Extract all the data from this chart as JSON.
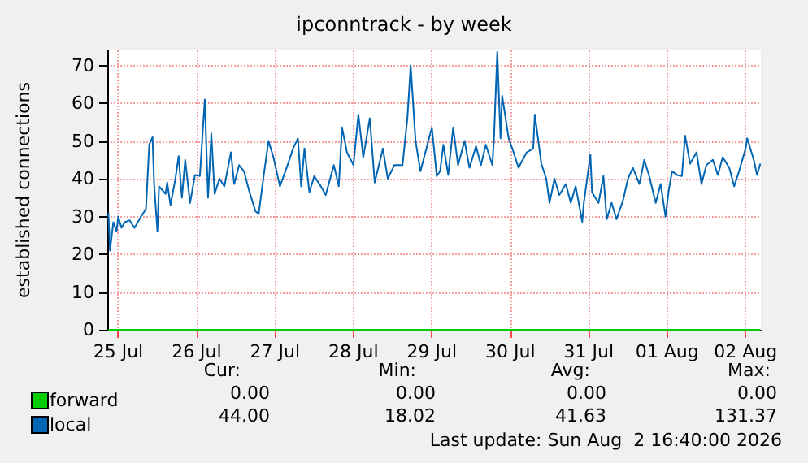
{
  "chart_data": {
    "type": "line",
    "title": "ipconntrack - by week",
    "ylabel": "established connections",
    "xlim": [
      "2026-07-25T08:40",
      "2026-08-02T16:40"
    ],
    "xticks": [
      {
        "value": "2026-07-25T12:00",
        "label": "25 Jul"
      },
      {
        "value": "2026-07-26T12:00",
        "label": "26 Jul"
      },
      {
        "value": "2026-07-27T12:00",
        "label": "27 Jul"
      },
      {
        "value": "2026-07-28T12:00",
        "label": "28 Jul"
      },
      {
        "value": "2026-07-29T12:00",
        "label": "29 Jul"
      },
      {
        "value": "2026-07-30T12:00",
        "label": "30 Jul"
      },
      {
        "value": "2026-07-31T12:00",
        "label": "31 Jul"
      },
      {
        "value": "2026-08-01T12:00",
        "label": "01 Aug"
      },
      {
        "value": "2026-08-02T12:00",
        "label": "02 Aug"
      }
    ],
    "ylim": [
      0,
      74
    ],
    "yticks": [
      0,
      10,
      20,
      30,
      40,
      50,
      60,
      70
    ],
    "grid": true,
    "legend": "bottom left",
    "marker": "none",
    "line_style": "solid",
    "x": [
      "2026-07-25T09:00",
      "2026-07-25T09:30",
      "2026-07-25T10:30",
      "2026-07-25T11:30",
      "2026-07-25T12:00",
      "2026-07-25T13:00",
      "2026-07-25T14:00",
      "2026-07-25T15:30",
      "2026-07-25T17:00",
      "2026-07-25T19:00",
      "2026-07-25T20:30",
      "2026-07-25T21:30",
      "2026-07-25T22:30",
      "2026-07-25T23:00",
      "2026-07-26T00:00",
      "2026-07-26T00:30",
      "2026-07-26T02:30",
      "2026-07-26T03:00",
      "2026-07-26T04:00",
      "2026-07-26T05:30",
      "2026-07-26T06:30",
      "2026-07-26T07:30",
      "2026-07-26T08:30",
      "2026-07-26T10:00",
      "2026-07-26T11:30",
      "2026-07-26T13:00",
      "2026-07-26T14:30",
      "2026-07-26T15:30",
      "2026-07-26T16:30",
      "2026-07-26T17:30",
      "2026-07-26T19:00",
      "2026-07-26T20:30",
      "2026-07-26T22:30",
      "2026-07-26T23:30",
      "2026-07-27T01:00",
      "2026-07-27T02:30",
      "2026-07-27T04:00",
      "2026-07-27T06:00",
      "2026-07-27T07:00",
      "2026-07-27T08:30",
      "2026-07-27T10:00",
      "2026-07-27T11:30",
      "2026-07-27T13:30",
      "2026-07-27T16:00",
      "2026-07-27T17:30",
      "2026-07-27T19:00",
      "2026-07-27T20:00",
      "2026-07-27T21:00",
      "2026-07-27T22:30",
      "2026-07-28T00:00",
      "2026-07-28T02:00",
      "2026-07-28T03:30",
      "2026-07-28T06:00",
      "2026-07-28T07:30",
      "2026-07-28T08:30",
      "2026-07-28T10:00",
      "2026-07-28T12:00",
      "2026-07-28T13:30",
      "2026-07-28T15:00",
      "2026-07-28T17:00",
      "2026-07-28T18:30",
      "2026-07-28T21:00",
      "2026-07-28T22:30",
      "2026-07-29T00:30",
      "2026-07-29T03:00",
      "2026-07-29T04:30",
      "2026-07-29T05:30",
      "2026-07-29T07:00",
      "2026-07-29T08:30",
      "2026-07-29T10:30",
      "2026-07-29T12:00",
      "2026-07-29T13:30",
      "2026-07-29T14:30",
      "2026-07-29T15:30",
      "2026-07-29T17:00",
      "2026-07-29T18:30",
      "2026-07-29T20:00",
      "2026-07-29T22:00",
      "2026-07-29T23:30",
      "2026-07-30T01:30",
      "2026-07-30T03:00",
      "2026-07-30T04:30",
      "2026-07-30T06:30",
      "2026-07-30T07:00",
      "2026-07-30T08:00",
      "2026-07-30T09:00",
      "2026-07-30T09:30",
      "2026-07-30T11:30",
      "2026-07-30T13:00",
      "2026-07-30T14:30",
      "2026-07-30T17:00",
      "2026-07-30T19:00",
      "2026-07-30T19:30",
      "2026-07-30T21:30",
      "2026-07-30T23:00",
      "2026-07-31T00:00",
      "2026-07-31T01:30",
      "2026-07-31T03:00",
      "2026-07-31T05:00",
      "2026-07-31T06:30",
      "2026-07-31T08:00",
      "2026-07-31T10:00",
      "2026-07-31T10:30",
      "2026-07-31T12:30",
      "2026-07-31T13:00",
      "2026-07-31T15:00",
      "2026-07-31T16:30",
      "2026-07-31T17:30",
      "2026-07-31T19:00",
      "2026-07-31T20:30",
      "2026-07-31T22:30",
      "2026-08-01T00:00",
      "2026-08-01T01:30",
      "2026-08-01T03:30",
      "2026-08-01T05:00",
      "2026-08-01T06:30",
      "2026-08-01T08:30",
      "2026-08-01T10:00",
      "2026-08-01T11:30",
      "2026-08-01T12:30",
      "2026-08-01T13:30",
      "2026-08-01T15:00",
      "2026-08-01T16:30",
      "2026-08-01T17:30",
      "2026-08-01T19:00",
      "2026-08-01T21:00",
      "2026-08-01T22:30",
      "2026-08-02T00:00",
      "2026-08-02T02:00",
      "2026-08-02T03:30",
      "2026-08-02T05:00",
      "2026-08-02T07:00",
      "2026-08-02T08:30",
      "2026-08-02T10:00",
      "2026-08-02T12:00",
      "2026-08-02T12:30",
      "2026-08-02T14:30",
      "2026-08-02T15:30",
      "2026-08-02T16:30"
    ],
    "series": [
      {
        "name": "forward",
        "color": "#00cc00",
        "x": [
          "2026-07-25T09:00",
          "2026-08-02T16:30"
        ],
        "values": [
          0,
          0
        ]
      },
      {
        "name": "local",
        "color": "#0066b3",
        "values": [
          31,
          21,
          28.5,
          26,
          30,
          27,
          28.5,
          29,
          27,
          30,
          32,
          49,
          51,
          38.5,
          26,
          38,
          36,
          39,
          33,
          40,
          46,
          35,
          45,
          33.6,
          41,
          40.7,
          61,
          35,
          52,
          36,
          40,
          38,
          47,
          38.6,
          43.6,
          42,
          37,
          31.4,
          30.7,
          40.7,
          50,
          45.7,
          38,
          44,
          48,
          50.7,
          38,
          48,
          36.4,
          40.7,
          38,
          35.7,
          43.6,
          38,
          53.6,
          47,
          43.6,
          57,
          45.7,
          56,
          39,
          48,
          40,
          43.6,
          43.6,
          56,
          70,
          50,
          42,
          48.6,
          53.6,
          40.7,
          42,
          49,
          41,
          53.6,
          43.6,
          50,
          42.9,
          48.6,
          43.6,
          49,
          43.6,
          50.7,
          73.6,
          50.7,
          62,
          50.7,
          47,
          42.9,
          47,
          48,
          57,
          44,
          40,
          33.6,
          40,
          35.7,
          38.6,
          33.6,
          38,
          28.6,
          33.6,
          46.4,
          36.4,
          33.6,
          40.7,
          29.3,
          33.6,
          29.3,
          34.3,
          40,
          42.9,
          38.6,
          45,
          40.7,
          33.6,
          38.6,
          30,
          37,
          42,
          41,
          40.7,
          51.4,
          44,
          47,
          38.6,
          43.6,
          45,
          41,
          45.7,
          42.9,
          38,
          42,
          48,
          50.7,
          45,
          41,
          44
        ]
      }
    ],
    "annotations": [
      "Cur:",
      "Min:",
      "Avg:",
      "Max:",
      "0.00",
      "0.00",
      "0.00",
      "0.00",
      "44.00",
      "18.02",
      "41.63",
      "131.37",
      "Last update: Sun Aug  2 16:40:00 2026"
    ]
  }
}
